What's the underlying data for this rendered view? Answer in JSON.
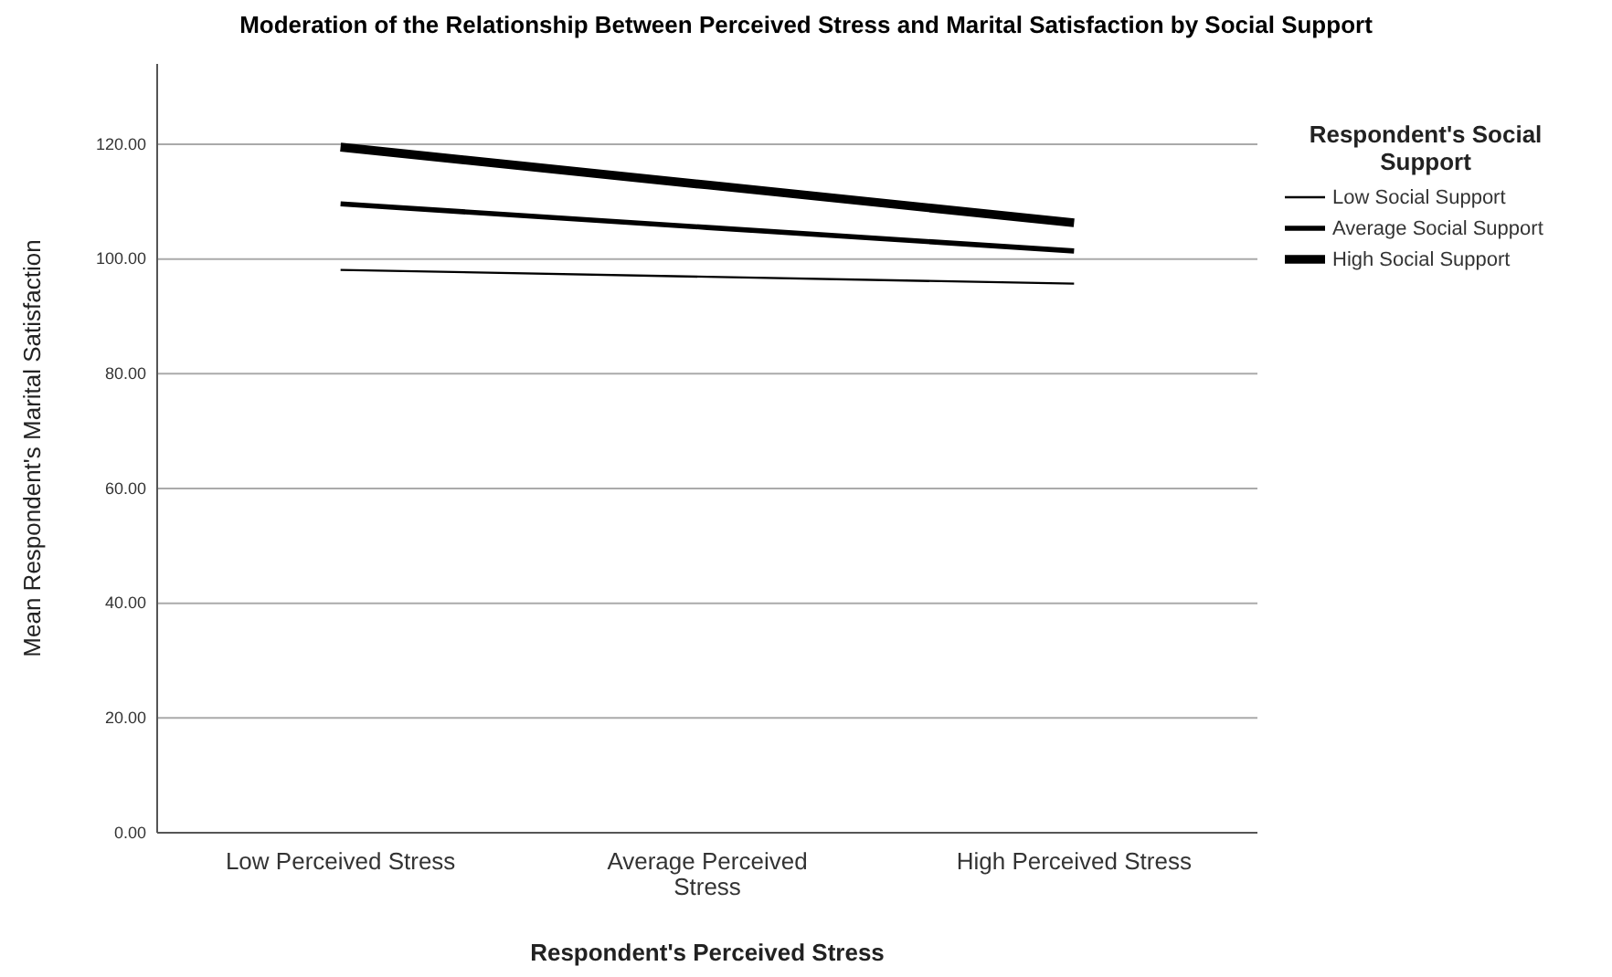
{
  "chart_data": {
    "type": "line",
    "title": "Moderation of the Relationship Between Perceived Stress and Marital Satisfaction by Social Support",
    "xlabel": "Respondent's Perceived Stress",
    "ylabel": "Mean Respondent's Marital Satisfaction",
    "legend_title": "Respondent's Social Support",
    "categories": [
      "Low Perceived Stress",
      "Average Perceived Stress",
      "High Perceived Stress"
    ],
    "series": [
      {
        "name": "Low Social Support",
        "color": "#000000",
        "values": [
          98.1,
          96.9,
          95.7
        ]
      },
      {
        "name": "Average Social Support",
        "color": "#000000",
        "values": [
          109.6,
          105.5,
          101.4
        ]
      },
      {
        "name": "High Social Support",
        "color": "#000000",
        "values": [
          119.5,
          112.9,
          106.3
        ]
      }
    ],
    "ylim": [
      0,
      134
    ],
    "yticks": [
      {
        "value": 0,
        "label": "0.00"
      },
      {
        "value": 20,
        "label": "20.00"
      },
      {
        "value": 40,
        "label": "40.00"
      },
      {
        "value": 60,
        "label": "60.00"
      },
      {
        "value": 80,
        "label": "80.00"
      },
      {
        "value": 100,
        "label": "100.00"
      },
      {
        "value": 120,
        "label": "120.00"
      }
    ],
    "grid": "y",
    "legend": "right",
    "marker": "none",
    "line_style": "solid"
  }
}
